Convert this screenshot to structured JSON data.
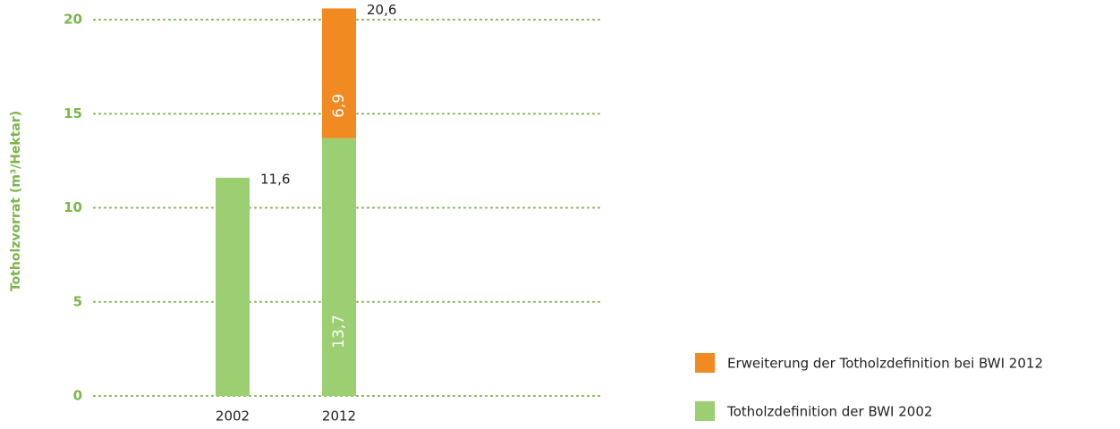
{
  "chart_data": {
    "type": "stacked_bar",
    "ylabel": "Totholzvorrat (m³/Hektar)",
    "categories": [
      "2002",
      "2012"
    ],
    "series": [
      {
        "name": "Totholzdefinition der BWI 2002",
        "color": "#9bcf72",
        "values": [
          11.6,
          13.7
        ],
        "value_labels": [
          null,
          "13,7"
        ]
      },
      {
        "name": "Erweiterung der Totholzdefinition bei BWI 2012",
        "color": "#f28a22",
        "values": [
          null,
          6.9
        ],
        "value_labels": [
          null,
          "6,9"
        ]
      }
    ],
    "totals": [
      11.6,
      20.6
    ],
    "total_labels": [
      "11,6",
      "20,6"
    ],
    "ylim": [
      0,
      21
    ],
    "yticks": [
      0,
      5,
      10,
      15,
      20
    ],
    "grid": true,
    "grid_color": "#7ab648"
  }
}
